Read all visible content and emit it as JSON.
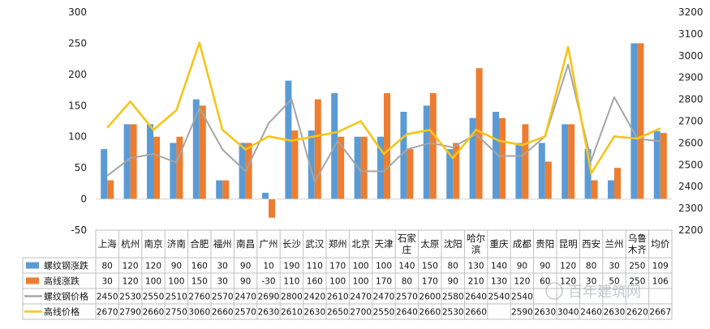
{
  "chart_data": {
    "type": "bar",
    "categories": [
      "上海",
      "杭州",
      "南京",
      "济南",
      "合肥",
      "福州",
      "南昌",
      "广州",
      "长沙",
      "武汉",
      "郑州",
      "北京",
      "天津",
      "石家庄",
      "太原",
      "沈阳",
      "哈尔滨",
      "重庆",
      "成都",
      "贵阳",
      "昆明",
      "西安",
      "兰州",
      "乌鲁木齐",
      "均价"
    ],
    "category_lines": [
      [
        "上海"
      ],
      [
        "杭州"
      ],
      [
        "南京"
      ],
      [
        "济南"
      ],
      [
        "合肥"
      ],
      [
        "福州"
      ],
      [
        "南昌"
      ],
      [
        "广州"
      ],
      [
        "长沙"
      ],
      [
        "武汉"
      ],
      [
        "郑州"
      ],
      [
        "北京"
      ],
      [
        "天津"
      ],
      [
        "石家",
        "庄"
      ],
      [
        "太原"
      ],
      [
        "沈阳"
      ],
      [
        "哈尔",
        "滨"
      ],
      [
        "重庆"
      ],
      [
        "成都"
      ],
      [
        "贵阳"
      ],
      [
        "昆明"
      ],
      [
        "西安"
      ],
      [
        "兰州"
      ],
      [
        "乌鲁",
        "木齐"
      ],
      [
        "均价"
      ]
    ],
    "y_left": {
      "min": -50,
      "max": 300,
      "step": 50,
      "ticks": [
        "300",
        "250",
        "200",
        "150",
        "100",
        "50",
        "0",
        "-50"
      ]
    },
    "y_right": {
      "min": 2200,
      "max": 3200,
      "step": 100,
      "ticks": [
        "3200",
        "3100",
        "3000",
        "2900",
        "2800",
        "2700",
        "2600",
        "2500",
        "2400",
        "2300",
        "2200"
      ]
    },
    "grid": false,
    "legend": "table-left",
    "series": [
      {
        "name": "螺纹钢涨跌",
        "type": "bar",
        "axis": "left",
        "color": "#5b9bd5",
        "values": [
          80,
          120,
          120,
          90,
          160,
          30,
          90,
          10,
          190,
          110,
          170,
          100,
          100,
          140,
          150,
          80,
          130,
          140,
          90,
          90,
          120,
          80,
          30,
          250,
          109
        ],
        "labels": [
          "80",
          "120",
          "120",
          "90",
          "160",
          "30",
          "90",
          "10",
          "190",
          "110",
          "170",
          "100",
          "100",
          "140",
          "150",
          "80",
          "130",
          "140",
          "90",
          "90",
          "120",
          "80",
          "30",
          "250",
          "109"
        ]
      },
      {
        "name": "高线涨跌",
        "type": "bar",
        "axis": "left",
        "color": "#ed7d31",
        "values": [
          30,
          120,
          100,
          100,
          150,
          30,
          90,
          -30,
          110,
          160,
          100,
          100,
          170,
          80,
          170,
          90,
          210,
          130,
          120,
          60,
          120,
          30,
          50,
          250,
          106
        ],
        "labels": [
          "30",
          "120",
          "100",
          "100",
          "150",
          "30",
          "90",
          "-30",
          "110",
          "160",
          "100",
          "100",
          "170",
          "80",
          "170",
          "90",
          "210",
          "130",
          "120",
          "60",
          "120",
          "30",
          "50",
          "250",
          "106"
        ]
      },
      {
        "name": "螺纹钢价格",
        "type": "line",
        "axis": "right",
        "color": "#a5a5a5",
        "values": [
          2450,
          2530,
          2550,
          2510,
          2760,
          2570,
          2470,
          2690,
          2800,
          2420,
          2610,
          2470,
          2470,
          2570,
          2600,
          2580,
          2640,
          2540,
          2540,
          2630,
          2960,
          2520,
          2810,
          2620,
          2607
        ],
        "labels": [
          "2450",
          "2530",
          "2550",
          "2510",
          "2760",
          "2570",
          "2470",
          "2690",
          "2800",
          "2420",
          "2610",
          "2470",
          "2470",
          "2570",
          "2600",
          "2580",
          "2640",
          "2540",
          "2540",
          "",
          "",
          "",
          "",
          "",
          ""
        ]
      },
      {
        "name": "高线价格",
        "type": "line",
        "axis": "right",
        "color": "#f5c518",
        "values": [
          2670,
          2790,
          2660,
          2750,
          3060,
          2660,
          2570,
          2630,
          2610,
          2630,
          2650,
          2700,
          2550,
          2640,
          2660,
          2530,
          2660,
          2610,
          2590,
          2630,
          3040,
          2460,
          2630,
          2620,
          2667
        ],
        "labels": [
          "2670",
          "2790",
          "2660",
          "2750",
          "3060",
          "2660",
          "2570",
          "2630",
          "2610",
          "2630",
          "2650",
          "2700",
          "2550",
          "2640",
          "2660",
          "2530",
          "2660",
          "",
          "2590",
          "2630",
          "3040",
          "2460",
          "2630",
          "2620",
          "2667"
        ]
      }
    ]
  },
  "watermark": {
    "text": "百年建筑网"
  }
}
